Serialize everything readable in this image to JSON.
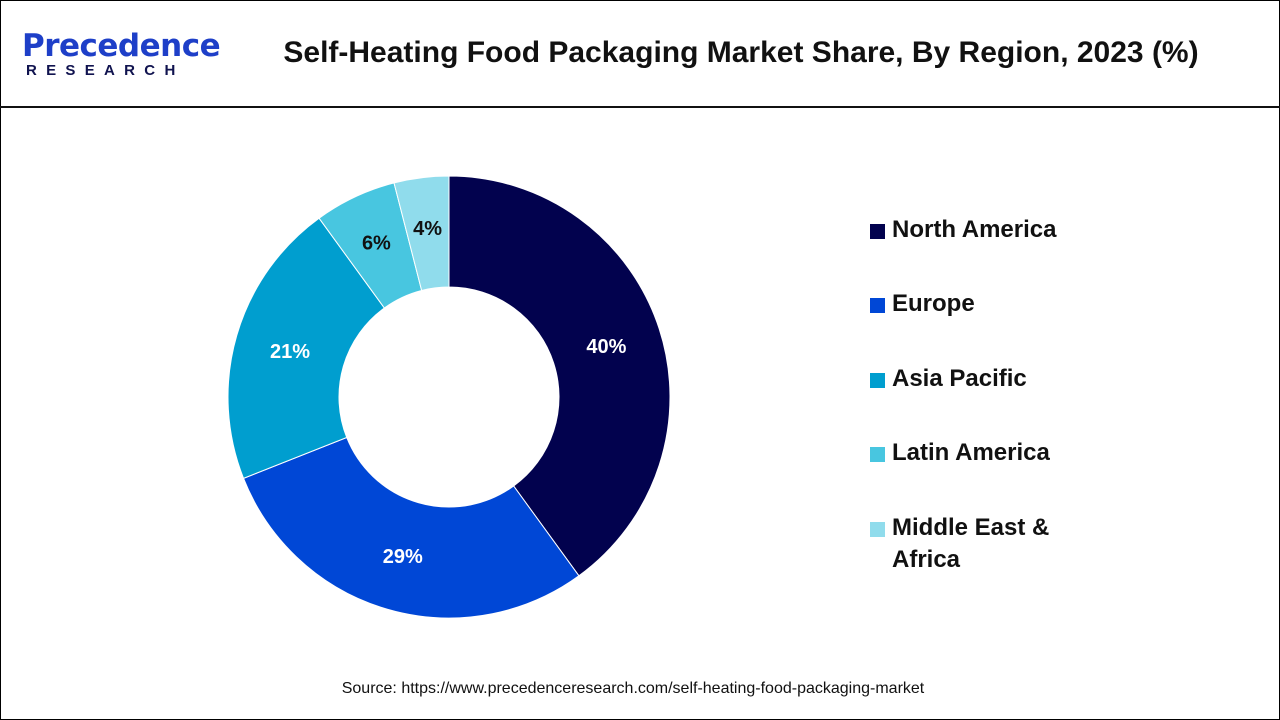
{
  "logo": {
    "main": "Precedence",
    "sub": "RESEARCH"
  },
  "title": "Self-Heating Food Packaging Market Share, By Region, 2023 (%)",
  "source": "Source: https://www.precedenceresearch.com/self-heating-food-packaging-market",
  "chart_data": {
    "type": "pie",
    "subtype": "donut",
    "title": "Self-Heating Food Packaging Market Share, By Region, 2023 (%)",
    "categories": [
      "North America",
      "Europe",
      "Asia Pacific",
      "Latin America",
      "Middle East & Africa"
    ],
    "values": [
      40,
      29,
      21,
      6,
      4
    ],
    "labels": [
      "40%",
      "29%",
      "21%",
      "6%",
      "4%"
    ],
    "colors": [
      "#02024e",
      "#0047d6",
      "#009ecf",
      "#48c6e0",
      "#90dcec"
    ],
    "label_colors": [
      "#ffffff",
      "#ffffff",
      "#ffffff",
      "#111111",
      "#111111"
    ],
    "legend_position": "right"
  }
}
